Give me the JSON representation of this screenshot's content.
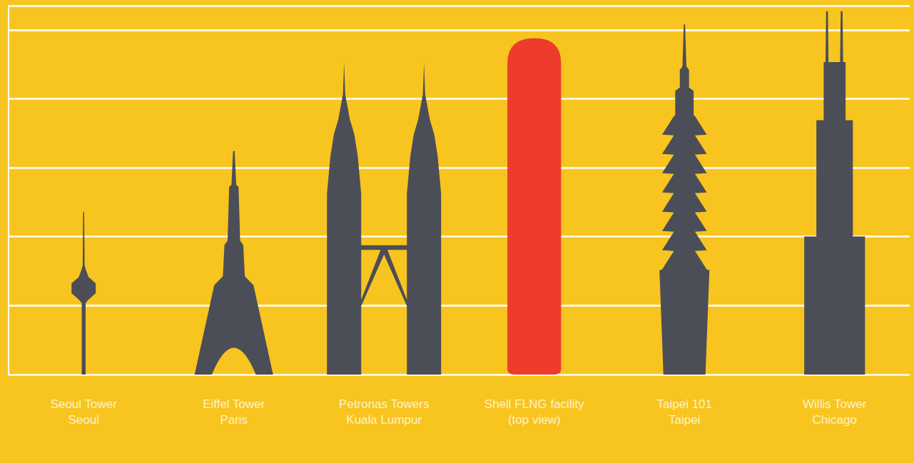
{
  "chart_data": {
    "type": "pictorialBar",
    "categories": [
      "Seoul Tower\nSeoul",
      "Eiffel Tower\nParis",
      "Petronas Towers\nKuala Lumpur",
      "Shell FLNG facility\n(top view)",
      "Taipei 101\nTaipei",
      "Willis Tower\nChicago"
    ],
    "values": [
      236,
      324,
      452,
      488,
      508,
      527
    ],
    "colors": [
      "#4b4e57",
      "#4b4e57",
      "#4b4e57",
      "#ee3b2b",
      "#4b4e57",
      "#4b4e57"
    ],
    "ylim": [
      0,
      535
    ],
    "yticks": [
      0,
      100,
      200,
      300,
      400,
      500
    ],
    "grid": true,
    "tick_labels": "x"
  }
}
